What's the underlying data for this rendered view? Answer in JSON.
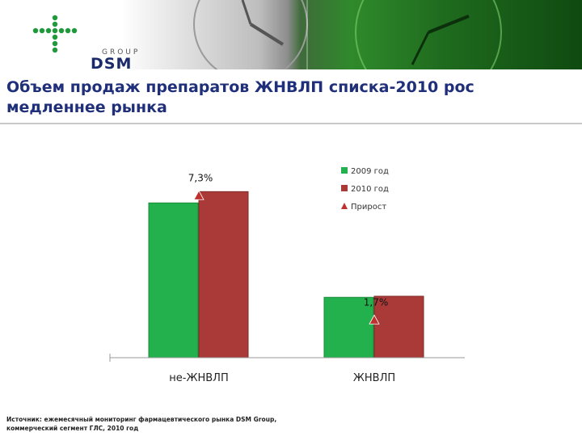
{
  "header": {
    "logo": {
      "group_text": "GROUP",
      "brand_text": "DSM",
      "icon": "plus-cross-logo-icon"
    }
  },
  "title": "Объем продаж препаратов ЖНВЛП списка-2010 рос медленнее рынка",
  "chart_data": {
    "type": "bar",
    "title": "",
    "categories": [
      "не-ЖНВЛП",
      "ЖНВЛП"
    ],
    "series": [
      {
        "name": "2009 год",
        "values": [
          100,
          39
        ],
        "color": "#22b14c"
      },
      {
        "name": "2010 год",
        "values": [
          107.3,
          39.7
        ],
        "color": "#a93a38"
      }
    ],
    "growth": {
      "name": "Прирост",
      "values": [
        7.3,
        1.7
      ],
      "labels": [
        "7,3%",
        "1,7%"
      ],
      "color": "#c0302c",
      "marker": "triangle"
    },
    "ylim": [
      0,
      120
    ],
    "xlabel": "",
    "ylabel": "",
    "grid": false,
    "legend": {
      "placement": "top-right"
    }
  },
  "source": {
    "line1": "Источник: ежемесячный мониторинг фармацевтического рынка DSM Group,",
    "line2": "коммерческий сегмент ГЛС, 2010 год"
  }
}
